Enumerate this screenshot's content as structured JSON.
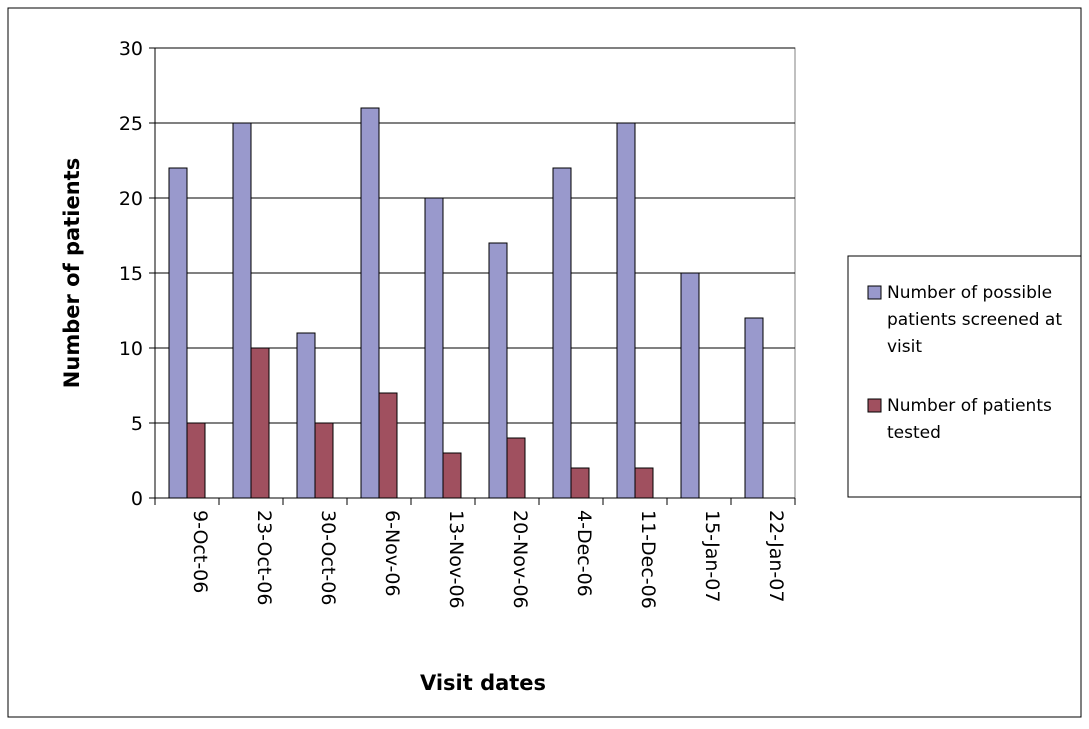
{
  "chart_data": {
    "type": "bar",
    "title": "",
    "xlabel": "Visit dates",
    "ylabel": "Number of patients",
    "categories": [
      "9-Oct-06",
      "23-Oct-06",
      "30-Oct-06",
      "6-Nov-06",
      "13-Nov-06",
      "20-Nov-06",
      "4-Dec-06",
      "11-Dec-06",
      "15-Jan-07",
      "22-Jan-07"
    ],
    "series": [
      {
        "name": "Number of possible patients screened at visit",
        "legend_lines": [
          "Number of possible",
          "patients screened at",
          "visit"
        ],
        "color": "#9999CC",
        "values": [
          22,
          25,
          11,
          26,
          20,
          17,
          22,
          25,
          15,
          12
        ]
      },
      {
        "name": "Number of patients tested",
        "legend_lines": [
          "Number of patients",
          "tested"
        ],
        "color": "#A0505F",
        "values": [
          5,
          10,
          5,
          7,
          3,
          4,
          2,
          2,
          0,
          0
        ]
      }
    ],
    "ylim": [
      0,
      30
    ],
    "yticks": [
      "0",
      "5",
      "10",
      "15",
      "20",
      "25",
      "30"
    ],
    "grid": true,
    "legend_position": "right"
  }
}
